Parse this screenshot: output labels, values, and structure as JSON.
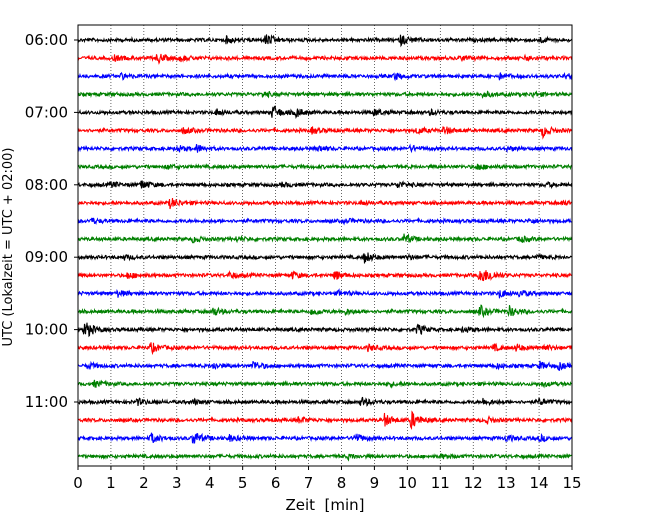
{
  "chart_data": {
    "type": "line",
    "title": "",
    "xlabel": "Zeit  [min]",
    "ylabel": "UTC (Lokalzeit = UTC + 02:00)",
    "xlim": [
      0,
      15
    ],
    "x_ticks": [
      "0",
      "1",
      "2",
      "3",
      "4",
      "5",
      "6",
      "7",
      "8",
      "9",
      "10",
      "11",
      "12",
      "13",
      "14",
      "15"
    ],
    "y_ticks": [
      {
        "label": "06:00",
        "row": 0
      },
      {
        "label": "07:00",
        "row": 4
      },
      {
        "label": "08:00",
        "row": 8
      },
      {
        "label": "09:00",
        "row": 12
      },
      {
        "label": "10:00",
        "row": 16
      },
      {
        "label": "11:00",
        "row": 20
      }
    ],
    "grid": "vertical dotted at each minute",
    "row_colors": [
      "#000000",
      "#ff0000",
      "#0000ff",
      "#008000"
    ],
    "rows_per_hour": 4,
    "minutes_per_row": 15,
    "series": [
      {
        "row": 0,
        "events": [
          {
            "t": 4.5,
            "amp": 0.3
          },
          {
            "t": 5.7,
            "amp": 0.6
          },
          {
            "t": 9.8,
            "amp": 0.5
          },
          {
            "t": 14.0,
            "amp": 0.25
          }
        ]
      },
      {
        "row": 1,
        "events": [
          {
            "t": 1.1,
            "amp": 0.25
          },
          {
            "t": 2.4,
            "amp": 0.5
          },
          {
            "t": 3.1,
            "amp": 0.25
          },
          {
            "t": 11.6,
            "amp": 0.25
          },
          {
            "t": 13.6,
            "amp": 0.25
          }
        ]
      },
      {
        "row": 2,
        "events": [
          {
            "t": 1.3,
            "amp": 0.25
          },
          {
            "t": 9.6,
            "amp": 0.3
          },
          {
            "t": 12.8,
            "amp": 0.25
          },
          {
            "t": 14.8,
            "amp": 0.25
          }
        ]
      },
      {
        "row": 3,
        "events": [
          {
            "t": 5.6,
            "amp": 0.25
          },
          {
            "t": 12.3,
            "amp": 0.25
          },
          {
            "t": 13.8,
            "amp": 0.2
          }
        ]
      },
      {
        "row": 4,
        "events": [
          {
            "t": 4.2,
            "amp": 0.3
          },
          {
            "t": 5.9,
            "amp": 0.7
          },
          {
            "t": 6.6,
            "amp": 0.45
          },
          {
            "t": 9.0,
            "amp": 0.3
          },
          {
            "t": 10.7,
            "amp": 0.25
          }
        ]
      },
      {
        "row": 5,
        "events": [
          {
            "t": 3.2,
            "amp": 0.3
          },
          {
            "t": 7.1,
            "amp": 0.3
          },
          {
            "t": 10.3,
            "amp": 0.3
          },
          {
            "t": 11.1,
            "amp": 0.4
          },
          {
            "t": 14.1,
            "amp": 0.6
          }
        ]
      },
      {
        "row": 6,
        "events": [
          {
            "t": 3.0,
            "amp": 0.3
          },
          {
            "t": 3.6,
            "amp": 0.35
          },
          {
            "t": 7.3,
            "amp": 0.25
          },
          {
            "t": 10.1,
            "amp": 0.25
          },
          {
            "t": 13.0,
            "amp": 0.2
          }
        ]
      },
      {
        "row": 7,
        "events": [
          {
            "t": 2.7,
            "amp": 0.2
          },
          {
            "t": 12.1,
            "amp": 0.3
          }
        ]
      },
      {
        "row": 8,
        "events": [
          {
            "t": 1.0,
            "amp": 0.25
          },
          {
            "t": 1.9,
            "amp": 0.45
          },
          {
            "t": 6.2,
            "amp": 0.2
          },
          {
            "t": 9.7,
            "amp": 0.3
          },
          {
            "t": 14.2,
            "amp": 0.2
          }
        ]
      },
      {
        "row": 9,
        "events": [
          {
            "t": 2.8,
            "amp": 0.5
          },
          {
            "t": 8.6,
            "amp": 0.2
          },
          {
            "t": 14.7,
            "amp": 0.2
          }
        ]
      },
      {
        "row": 10,
        "events": [
          {
            "t": 0.4,
            "amp": 0.25
          },
          {
            "t": 8.1,
            "amp": 0.2
          },
          {
            "t": 13.7,
            "amp": 0.2
          }
        ]
      },
      {
        "row": 11,
        "events": [
          {
            "t": 3.5,
            "amp": 0.3
          },
          {
            "t": 4.8,
            "amp": 0.2
          },
          {
            "t": 9.9,
            "amp": 0.45
          },
          {
            "t": 13.4,
            "amp": 0.3
          }
        ]
      },
      {
        "row": 12,
        "events": [
          {
            "t": 1.4,
            "amp": 0.2
          },
          {
            "t": 8.7,
            "amp": 0.55
          },
          {
            "t": 10.0,
            "amp": 0.2
          },
          {
            "t": 13.9,
            "amp": 0.2
          }
        ]
      },
      {
        "row": 13,
        "events": [
          {
            "t": 1.5,
            "amp": 0.3
          },
          {
            "t": 4.6,
            "amp": 0.3
          },
          {
            "t": 6.5,
            "amp": 0.3
          },
          {
            "t": 7.8,
            "amp": 0.45
          },
          {
            "t": 12.2,
            "amp": 1.0
          },
          {
            "t": 12.5,
            "amp": 0.25
          }
        ]
      },
      {
        "row": 14,
        "events": [
          {
            "t": 1.2,
            "amp": 0.3
          },
          {
            "t": 7.9,
            "amp": 0.25
          },
          {
            "t": 12.8,
            "amp": 0.4
          },
          {
            "t": 13.4,
            "amp": 0.3
          }
        ]
      },
      {
        "row": 15,
        "events": [
          {
            "t": 4.1,
            "amp": 0.4
          },
          {
            "t": 7.1,
            "amp": 0.35
          },
          {
            "t": 8.1,
            "amp": 0.3
          },
          {
            "t": 12.2,
            "amp": 0.55
          },
          {
            "t": 13.1,
            "amp": 0.5
          }
        ]
      },
      {
        "row": 16,
        "events": [
          {
            "t": 0.2,
            "amp": 0.9
          },
          {
            "t": 10.3,
            "amp": 0.5
          },
          {
            "t": 11.7,
            "amp": 0.25
          }
        ]
      },
      {
        "row": 17,
        "events": [
          {
            "t": 2.2,
            "amp": 0.5
          },
          {
            "t": 8.8,
            "amp": 0.3
          },
          {
            "t": 12.6,
            "amp": 0.3
          },
          {
            "t": 13.3,
            "amp": 0.3
          },
          {
            "t": 14.1,
            "amp": 0.3
          }
        ]
      },
      {
        "row": 18,
        "events": [
          {
            "t": 0.3,
            "amp": 0.3
          },
          {
            "t": 4.1,
            "amp": 0.3
          },
          {
            "t": 5.3,
            "amp": 0.5
          },
          {
            "t": 12.7,
            "amp": 0.2
          },
          {
            "t": 14.0,
            "amp": 0.4
          },
          {
            "t": 14.6,
            "amp": 0.3
          }
        ]
      },
      {
        "row": 19,
        "events": [
          {
            "t": 0.5,
            "amp": 0.3
          },
          {
            "t": 9.4,
            "amp": 0.2
          },
          {
            "t": 14.1,
            "amp": 0.2
          }
        ]
      },
      {
        "row": 20,
        "events": [
          {
            "t": 1.8,
            "amp": 0.3
          },
          {
            "t": 3.5,
            "amp": 0.2
          },
          {
            "t": 8.6,
            "amp": 0.45
          },
          {
            "t": 12.3,
            "amp": 0.3
          },
          {
            "t": 14.0,
            "amp": 0.3
          }
        ]
      },
      {
        "row": 21,
        "events": [
          {
            "t": 6.7,
            "amp": 0.3
          },
          {
            "t": 9.3,
            "amp": 0.6
          },
          {
            "t": 10.1,
            "amp": 0.9
          },
          {
            "t": 12.4,
            "amp": 0.3
          }
        ]
      },
      {
        "row": 22,
        "events": [
          {
            "t": 2.2,
            "amp": 0.5
          },
          {
            "t": 3.5,
            "amp": 0.7
          },
          {
            "t": 4.6,
            "amp": 0.3
          },
          {
            "t": 8.4,
            "amp": 0.45
          },
          {
            "t": 13.0,
            "amp": 0.3
          },
          {
            "t": 14.0,
            "amp": 0.3
          }
        ]
      },
      {
        "row": 23,
        "events": [
          {
            "t": 8.2,
            "amp": 0.2
          },
          {
            "t": 11.0,
            "amp": 0.2
          }
        ]
      }
    ]
  }
}
